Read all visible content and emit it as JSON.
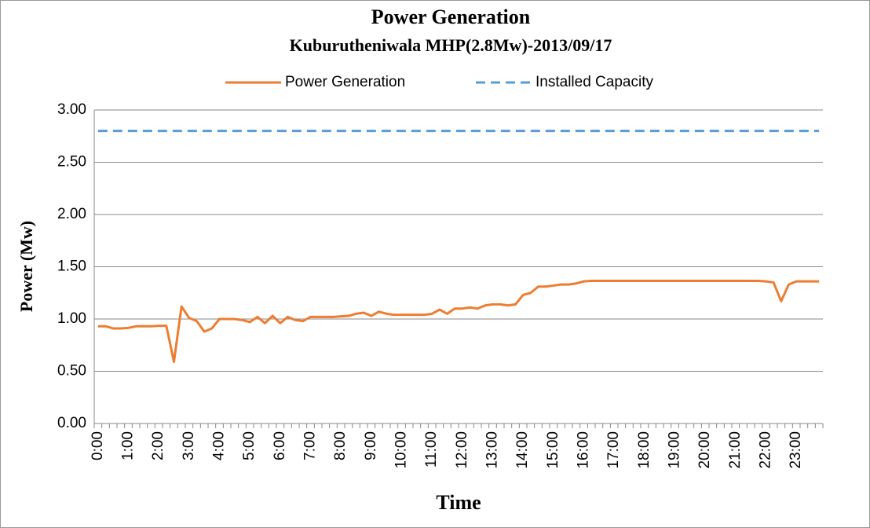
{
  "chart_data": {
    "type": "line",
    "title": "Power Generation",
    "subtitle": "Kuburutheniwala MHP(2.8Mw)-2013/09/17",
    "y_label": "Power (Mw)",
    "x_label": "Time",
    "categories": [
      "0:00",
      null,
      null,
      null,
      "1:00",
      null,
      null,
      null,
      "2:00",
      null,
      null,
      null,
      "3:00",
      null,
      null,
      null,
      "4:00",
      null,
      null,
      null,
      "5:00",
      null,
      null,
      null,
      "6:00",
      null,
      null,
      null,
      "7:00",
      null,
      null,
      null,
      "8:00",
      null,
      null,
      null,
      "9:00",
      null,
      null,
      null,
      "10:00",
      null,
      null,
      null,
      "11:00",
      null,
      null,
      null,
      "12:00",
      null,
      null,
      null,
      "13:00",
      null,
      null,
      null,
      "14:00",
      null,
      null,
      null,
      "15:00",
      null,
      null,
      null,
      "16:00",
      null,
      null,
      null,
      "17:00",
      null,
      null,
      null,
      "18:00",
      null,
      null,
      null,
      "19:00",
      null,
      null,
      null,
      "20:00",
      null,
      null,
      null,
      "21:00",
      null,
      null,
      null,
      "22:00",
      null,
      null,
      null,
      "23:00",
      null,
      null,
      null
    ],
    "series": [
      {
        "name": "Power Generation",
        "color": "#ed7d31",
        "dash": false,
        "values": [
          0.93,
          0.93,
          0.91,
          0.91,
          0.915,
          0.93,
          0.93,
          0.93,
          0.935,
          0.935,
          0.59,
          1.12,
          1.01,
          0.98,
          0.88,
          0.91,
          1.0,
          1.0,
          1.0,
          0.99,
          0.97,
          1.02,
          0.96,
          1.03,
          0.96,
          1.02,
          0.99,
          0.98,
          1.02,
          1.02,
          1.02,
          1.02,
          1.025,
          1.03,
          1.05,
          1.06,
          1.03,
          1.07,
          1.05,
          1.04,
          1.04,
          1.04,
          1.04,
          1.04,
          1.05,
          1.09,
          1.05,
          1.1,
          1.1,
          1.11,
          1.1,
          1.13,
          1.14,
          1.14,
          1.13,
          1.14,
          1.23,
          1.25,
          1.31,
          1.31,
          1.32,
          1.33,
          1.33,
          1.34,
          1.36,
          1.365,
          1.365,
          1.365,
          1.365,
          1.365,
          1.365,
          1.365,
          1.365,
          1.365,
          1.365,
          1.365,
          1.365,
          1.365,
          1.365,
          1.365,
          1.365,
          1.365,
          1.365,
          1.365,
          1.365,
          1.365,
          1.365,
          1.365,
          1.36,
          1.35,
          1.17,
          1.33,
          1.36,
          1.36,
          1.36,
          1.36
        ]
      },
      {
        "name": "Installed Capacity",
        "color": "#5b9bd5",
        "dash": true,
        "values": [
          2.8,
          2.8,
          2.8,
          2.8,
          2.8,
          2.8,
          2.8,
          2.8,
          2.8,
          2.8,
          2.8,
          2.8,
          2.8,
          2.8,
          2.8,
          2.8,
          2.8,
          2.8,
          2.8,
          2.8,
          2.8,
          2.8,
          2.8,
          2.8,
          2.8,
          2.8,
          2.8,
          2.8,
          2.8,
          2.8,
          2.8,
          2.8,
          2.8,
          2.8,
          2.8,
          2.8,
          2.8,
          2.8,
          2.8,
          2.8,
          2.8,
          2.8,
          2.8,
          2.8,
          2.8,
          2.8,
          2.8,
          2.8,
          2.8,
          2.8,
          2.8,
          2.8,
          2.8,
          2.8,
          2.8,
          2.8,
          2.8,
          2.8,
          2.8,
          2.8,
          2.8,
          2.8,
          2.8,
          2.8,
          2.8,
          2.8,
          2.8,
          2.8,
          2.8,
          2.8,
          2.8,
          2.8,
          2.8,
          2.8,
          2.8,
          2.8,
          2.8,
          2.8,
          2.8,
          2.8,
          2.8,
          2.8,
          2.8,
          2.8,
          2.8,
          2.8,
          2.8,
          2.8,
          2.8,
          2.8,
          2.8,
          2.8,
          2.8,
          2.8,
          2.8,
          2.8
        ]
      }
    ],
    "ylim": [
      0,
      3
    ],
    "yticks": [
      {
        "value": 0,
        "label": "0.00"
      },
      {
        "value": 0.5,
        "label": "0.50"
      },
      {
        "value": 1,
        "label": "1.00"
      },
      {
        "value": 1.5,
        "label": "1.50"
      },
      {
        "value": 2,
        "label": "2.00"
      },
      {
        "value": 2.5,
        "label": "2.50"
      },
      {
        "value": 3,
        "label": "3.00"
      }
    ],
    "grid": true,
    "legend": "top"
  }
}
